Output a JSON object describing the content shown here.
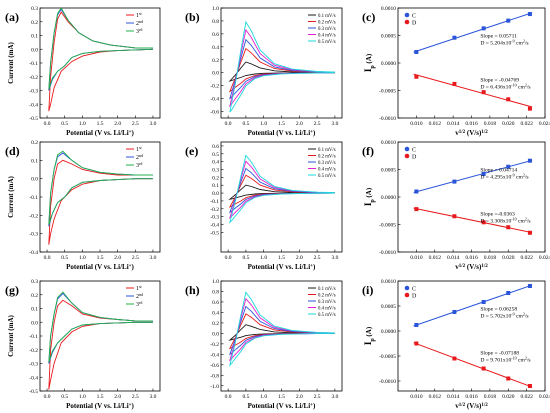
{
  "figure": {
    "panel_count": 9
  },
  "chart_data": [
    {
      "panel": "(a)",
      "type": "line",
      "xlabel": "Potential (V vs. Li/Li",
      "xlabel_sup": "+",
      "xlabel_end": ")",
      "ylabel": "Current (mA)",
      "xlim": [
        -0.2,
        3.2
      ],
      "ylim": [
        -0.5,
        0.3
      ],
      "xticks": [
        "0.0",
        "0.5",
        "1.0",
        "1.5",
        "2.0",
        "2.5",
        "3.0"
      ],
      "yticks": [
        "-0.5",
        "-0.4",
        "-0.3",
        "-0.2",
        "-0.1",
        "0.0",
        "0.1",
        "0.2",
        "0.3"
      ],
      "legend": "top-right",
      "series": [
        {
          "name": "1",
          "sup": "st",
          "color": "#e8191c",
          "x": [
            3.0,
            2.5,
            2.0,
            1.5,
            1.0,
            0.7,
            0.4,
            0.2,
            0.1,
            0.05,
            0.1,
            0.2,
            0.3,
            0.4,
            0.6,
            0.9,
            1.3,
            1.8,
            2.5,
            3.0
          ],
          "y": [
            0.0,
            -0.005,
            -0.01,
            -0.02,
            -0.05,
            -0.09,
            -0.16,
            -0.28,
            -0.4,
            -0.45,
            -0.2,
            0.05,
            0.22,
            0.27,
            0.2,
            0.12,
            0.06,
            0.03,
            0.01,
            0.01
          ]
        },
        {
          "name": "2",
          "sup": "nd",
          "color": "#2b55d8",
          "x": [
            3.0,
            2.5,
            2.0,
            1.5,
            1.0,
            0.7,
            0.5,
            0.3,
            0.15,
            0.05,
            0.1,
            0.2,
            0.3,
            0.4,
            0.6,
            0.9,
            1.3,
            1.8,
            2.5,
            3.0
          ],
          "y": [
            0.0,
            -0.005,
            -0.01,
            -0.015,
            -0.03,
            -0.06,
            -0.12,
            -0.16,
            -0.22,
            -0.3,
            -0.1,
            0.12,
            0.25,
            0.29,
            0.21,
            0.12,
            0.06,
            0.03,
            0.01,
            0.01
          ]
        },
        {
          "name": "3",
          "sup": "rd",
          "color": "#22b04a",
          "x": [
            3.0,
            2.5,
            2.0,
            1.5,
            1.0,
            0.7,
            0.5,
            0.3,
            0.15,
            0.05,
            0.1,
            0.2,
            0.3,
            0.4,
            0.6,
            0.9,
            1.3,
            1.8,
            2.5,
            3.0
          ],
          "y": [
            0.0,
            -0.005,
            -0.01,
            -0.015,
            -0.03,
            -0.06,
            -0.12,
            -0.16,
            -0.21,
            -0.29,
            -0.1,
            0.12,
            0.26,
            0.3,
            0.21,
            0.12,
            0.06,
            0.03,
            0.01,
            0.01
          ]
        }
      ]
    },
    {
      "panel": "(b)",
      "type": "line",
      "xlabel": "Potential (V vs. Li/Li",
      "xlabel_sup": "+",
      "xlabel_end": ")",
      "ylabel": "",
      "xlim": [
        -0.2,
        3.2
      ],
      "ylim": [
        -0.7,
        1.0
      ],
      "xticks": [
        "0.0",
        "0.5",
        "1.0",
        "1.5",
        "2.0",
        "2.5",
        "3.0"
      ],
      "yticks": [
        "-0.6",
        "-0.4",
        "-0.2",
        "0.0",
        "0.2",
        "0.4",
        "0.6",
        "0.8",
        "1.0"
      ],
      "legend": "top-right",
      "series": [
        {
          "name": "0.1 mV/s",
          "color": "#1a1a1a",
          "scale": 0.2
        },
        {
          "name": "0.2 mV/s",
          "color": "#e8191c",
          "scale": 0.45
        },
        {
          "name": "0.3 mV/s",
          "color": "#2b55d8",
          "scale": 0.62
        },
        {
          "name": "0.4 mV/s",
          "color": "#e41fd0",
          "scale": 0.8
        },
        {
          "name": "0.5 mV/s",
          "color": "#1ad8dc",
          "scale": 0.95
        }
      ]
    },
    {
      "panel": "(c)",
      "type": "scatter",
      "xlabel": "v",
      "xlabel_sup": "1/2",
      "xlabel_end": " (V/s)",
      "xlabel_sup2": "1/2",
      "ylabel": "I",
      "ylabel_sub": "p",
      "ylabel_end": " (A)",
      "xlim": [
        0.008,
        0.024
      ],
      "ylim": [
        -0.001,
        0.001
      ],
      "xticks": [
        "0.010",
        "0.012",
        "0.014",
        "0.016",
        "0.018",
        "0.020",
        "0.022",
        "0.024"
      ],
      "yticks": [
        "-0.0010",
        "-0.0005",
        "0.0000",
        "0.0005",
        "0.0010"
      ],
      "legend": "top-left",
      "series": [
        {
          "name": "C",
          "color": "#2b55d8",
          "x": [
            0.01,
            0.01414,
            0.01732,
            0.02,
            0.02236
          ],
          "y": [
            0.0002,
            0.00046,
            0.00063,
            0.00077,
            0.00089
          ]
        },
        {
          "name": "D",
          "color": "#e8191c",
          "x": [
            0.01,
            0.01414,
            0.01732,
            0.02,
            0.02236
          ],
          "y": [
            -0.00025,
            -0.00038,
            -0.00053,
            -0.00066,
            -0.00083
          ]
        }
      ],
      "annotations": [
        {
          "line1": "Slope = 0.05711",
          "line2a": "D = 5.204x10",
          "line2sup": "-9",
          "line2b": " cm",
          "line2sup2": "2",
          "line2c": "/s",
          "pos": "upper"
        },
        {
          "line1": "Slope = -0.04769",
          "line2a": "D = 6.436x10",
          "line2sup": "-10",
          "line2b": " cm",
          "line2sup2": "2",
          "line2c": "/s",
          "pos": "lower"
        }
      ]
    },
    {
      "panel": "(d)",
      "type": "line",
      "xlabel": "Potential (V vs. Li/Li",
      "xlabel_sup": "+",
      "xlabel_end": ")",
      "ylabel": "Current (mA)",
      "xlim": [
        -0.2,
        3.2
      ],
      "ylim": [
        -0.4,
        0.2
      ],
      "xticks": [
        "0.0",
        "0.5",
        "1.0",
        "1.5",
        "2.0",
        "2.5",
        "3.0"
      ],
      "yticks": [
        "-0.4",
        "-0.3",
        "-0.2",
        "-0.1",
        "0.0",
        "0.1",
        "0.2"
      ],
      "legend": "top-right",
      "series": [
        {
          "name": "1",
          "sup": "st",
          "color": "#e8191c",
          "x": [
            3.0,
            2.5,
            2.0,
            1.5,
            1.0,
            0.7,
            0.4,
            0.2,
            0.1,
            0.05,
            0.1,
            0.2,
            0.3,
            0.45,
            0.7,
            1.0,
            1.5,
            2.0,
            2.5,
            3.0
          ],
          "y": [
            0.0,
            0.0,
            -0.005,
            -0.01,
            -0.03,
            -0.06,
            -0.12,
            -0.22,
            -0.3,
            -0.36,
            -0.15,
            0.0,
            0.08,
            0.1,
            0.08,
            0.05,
            0.03,
            0.02,
            0.02,
            0.02
          ]
        },
        {
          "name": "2",
          "sup": "nd",
          "color": "#2b55d8",
          "x": [
            3.0,
            2.5,
            2.0,
            1.5,
            1.0,
            0.7,
            0.5,
            0.3,
            0.15,
            0.05,
            0.1,
            0.2,
            0.3,
            0.45,
            0.7,
            1.0,
            1.5,
            2.0,
            2.5,
            3.0
          ],
          "y": [
            0.0,
            0.0,
            -0.005,
            -0.01,
            -0.02,
            -0.05,
            -0.1,
            -0.13,
            -0.19,
            -0.26,
            -0.08,
            0.05,
            0.12,
            0.14,
            0.1,
            0.06,
            0.035,
            0.025,
            0.02,
            0.02
          ]
        },
        {
          "name": "3",
          "sup": "rd",
          "color": "#22b04a",
          "x": [
            3.0,
            2.5,
            2.0,
            1.5,
            1.0,
            0.7,
            0.5,
            0.3,
            0.15,
            0.05,
            0.1,
            0.2,
            0.3,
            0.45,
            0.7,
            1.0,
            1.5,
            2.0,
            2.5,
            3.0
          ],
          "y": [
            0.0,
            0.0,
            -0.005,
            -0.01,
            -0.02,
            -0.05,
            -0.1,
            -0.13,
            -0.19,
            -0.25,
            -0.08,
            0.05,
            0.13,
            0.15,
            0.1,
            0.06,
            0.035,
            0.025,
            0.02,
            0.02
          ]
        }
      ]
    },
    {
      "panel": "(e)",
      "type": "line",
      "xlabel": "Potential (V vs. Li/Li",
      "xlabel_sup": "+",
      "xlabel_end": ")",
      "ylabel": "",
      "xlim": [
        -0.2,
        3.2
      ],
      "ylim": [
        -0.75,
        0.65
      ],
      "xticks": [
        "0.0",
        "0.5",
        "1.0",
        "1.5",
        "2.0",
        "2.5",
        "3.0"
      ],
      "yticks": [
        "-0.5",
        "-0.4",
        "-0.3",
        "-0.2",
        "-0.1",
        "0.0",
        "0.1",
        "0.2",
        "0.3",
        "0.4",
        "0.5",
        "0.6"
      ],
      "legend": "top-right",
      "series": [
        {
          "name": "0.1 mV/s",
          "color": "#1a1a1a",
          "scale": 0.2
        },
        {
          "name": "0.2 mV/s",
          "color": "#e8191c",
          "scale": 0.45
        },
        {
          "name": "0.3 mV/s",
          "color": "#2b55d8",
          "scale": 0.62
        },
        {
          "name": "0.4 mV/s",
          "color": "#e41fd0",
          "scale": 0.8
        },
        {
          "name": "0.5 mV/s",
          "color": "#1ad8dc",
          "scale": 0.95
        }
      ]
    },
    {
      "panel": "(f)",
      "type": "scatter",
      "xlabel": "v",
      "xlabel_sup": "1/2",
      "xlabel_end": " (V/s)",
      "xlabel_sup2": "1/2",
      "ylabel": "I",
      "ylabel_sub": "p",
      "ylabel_end": " (A)",
      "xlim": [
        0.008,
        0.024
      ],
      "ylim": [
        -0.001,
        0.001
      ],
      "xticks": [
        "0.010",
        "0.012",
        "0.014",
        "0.016",
        "0.018",
        "0.020",
        "0.022",
        "0.024"
      ],
      "yticks": [
        "-0.0010",
        "-0.0005",
        "0.0000",
        "0.0005",
        "0.0010"
      ],
      "legend": "top-left",
      "series": [
        {
          "name": "C",
          "color": "#2b55d8",
          "x": [
            0.01,
            0.01414,
            0.01732,
            0.02,
            0.02236
          ],
          "y": [
            0.0001,
            0.00028,
            0.00042,
            0.00055,
            0.00066
          ]
        },
        {
          "name": "D",
          "color": "#e8191c",
          "x": [
            0.01,
            0.01414,
            0.01732,
            0.02,
            0.02236
          ],
          "y": [
            -0.00022,
            -0.00035,
            -0.00046,
            -0.00055,
            -0.00065
          ]
        }
      ],
      "annotations": [
        {
          "line1": "Slope = 0.04714",
          "line2a": "D = 4.295x10",
          "line2sup": "-9",
          "line2b": " cm",
          "line2sup2": "2",
          "line2c": "/s",
          "pos": "upper"
        },
        {
          "line1": "Slope =-0.0363",
          "line2a": "D = 3.308x10",
          "line2sup": "-10",
          "line2b": " cm",
          "line2sup2": "2",
          "line2c": "/s",
          "pos": "lower"
        }
      ]
    },
    {
      "panel": "(g)",
      "type": "line",
      "xlabel": "Potential (V vs. Li/Li",
      "xlabel_sup": "+",
      "xlabel_end": ")",
      "ylabel": "Current (mA)",
      "xlim": [
        -0.2,
        3.2
      ],
      "ylim": [
        -0.5,
        0.3
      ],
      "xticks": [
        "0.0",
        "0.5",
        "1.0",
        "1.5",
        "2.0",
        "2.5",
        "3.0"
      ],
      "yticks": [
        "-0.5",
        "-0.4",
        "-0.3",
        "-0.2",
        "-0.1",
        "0.0",
        "0.1",
        "0.2",
        "0.3"
      ],
      "legend": "top-right",
      "series": [
        {
          "name": "1",
          "sup": "st",
          "color": "#e8191c",
          "x": [
            3.0,
            2.5,
            2.0,
            1.5,
            1.0,
            0.7,
            0.4,
            0.2,
            0.1,
            0.05,
            0.1,
            0.2,
            0.3,
            0.45,
            0.7,
            1.0,
            1.5,
            2.0,
            2.5,
            3.0
          ],
          "y": [
            0.0,
            0.0,
            -0.005,
            -0.01,
            -0.03,
            -0.07,
            -0.15,
            -0.3,
            -0.42,
            -0.49,
            -0.2,
            0.0,
            0.12,
            0.16,
            0.12,
            0.06,
            0.03,
            0.02,
            0.01,
            0.01
          ]
        },
        {
          "name": "2",
          "sup": "nd",
          "color": "#2b55d8",
          "x": [
            3.0,
            2.5,
            2.0,
            1.5,
            1.0,
            0.7,
            0.5,
            0.3,
            0.15,
            0.05,
            0.1,
            0.2,
            0.3,
            0.45,
            0.7,
            1.0,
            1.5,
            2.0,
            2.5,
            3.0
          ],
          "y": [
            0.0,
            0.0,
            -0.005,
            -0.01,
            -0.02,
            -0.05,
            -0.1,
            -0.15,
            -0.22,
            -0.3,
            -0.1,
            0.06,
            0.17,
            0.21,
            0.14,
            0.07,
            0.035,
            0.02,
            0.01,
            0.01
          ]
        },
        {
          "name": "3",
          "sup": "rd",
          "color": "#22b04a",
          "x": [
            3.0,
            2.5,
            2.0,
            1.5,
            1.0,
            0.7,
            0.5,
            0.3,
            0.15,
            0.05,
            0.1,
            0.2,
            0.3,
            0.45,
            0.7,
            1.0,
            1.5,
            2.0,
            2.5,
            3.0
          ],
          "y": [
            0.0,
            0.0,
            -0.005,
            -0.01,
            -0.02,
            -0.05,
            -0.1,
            -0.15,
            -0.21,
            -0.29,
            -0.1,
            0.06,
            0.18,
            0.22,
            0.14,
            0.07,
            0.035,
            0.02,
            0.01,
            0.01
          ]
        }
      ]
    },
    {
      "panel": "(h)",
      "type": "line",
      "xlabel": "Potential (V vs. Li/Li",
      "xlabel_sup": "+",
      "xlabel_end": ")",
      "ylabel": "",
      "xlim": [
        -0.2,
        3.2
      ],
      "ylim": [
        -1.1,
        1.0
      ],
      "xticks": [
        "0.0",
        "0.5",
        "1.0",
        "1.5",
        "2.0",
        "2.5",
        "3.0"
      ],
      "yticks": [
        "-1.0",
        "-0.8",
        "-0.6",
        "-0.4",
        "-0.2",
        "0.0",
        "0.2",
        "0.4",
        "0.6",
        "0.8",
        "1.0"
      ],
      "legend": "top-right",
      "series": [
        {
          "name": "0.1 mV/s",
          "color": "#1a1a1a",
          "scale": 0.2
        },
        {
          "name": "0.2 mV/s",
          "color": "#e8191c",
          "scale": 0.45
        },
        {
          "name": "0.3 mV/s",
          "color": "#2b55d8",
          "scale": 0.62
        },
        {
          "name": "0.4 mV/s",
          "color": "#e41fd0",
          "scale": 0.8
        },
        {
          "name": "0.5 mV/s",
          "color": "#1ad8dc",
          "scale": 0.95
        }
      ]
    },
    {
      "panel": "(i)",
      "type": "scatter",
      "xlabel": "v",
      "xlabel_sup": "1/2",
      "xlabel_end": " (V/s)",
      "xlabel_sup2": "1/2",
      "ylabel": "I",
      "ylabel_sub": "p",
      "ylabel_end": " (A)",
      "xlim": [
        0.008,
        0.024
      ],
      "ylim": [
        -0.0012,
        0.001
      ],
      "xticks": [
        "0.010",
        "0.012",
        "0.014",
        "0.016",
        "0.018",
        "0.020",
        "0.022",
        "0.024"
      ],
      "yticks": [
        "-0.0010",
        "-0.0005",
        "0.0000",
        "0.0005",
        "0.0010"
      ],
      "legend": "top-left",
      "series": [
        {
          "name": "C",
          "color": "#2b55d8",
          "x": [
            0.01,
            0.01414,
            0.01732,
            0.02,
            0.02236
          ],
          "y": [
            0.00012,
            0.00038,
            0.00058,
            0.00076,
            0.0009
          ]
        },
        {
          "name": "D",
          "color": "#e8191c",
          "x": [
            0.01,
            0.01414,
            0.01732,
            0.02,
            0.02236
          ],
          "y": [
            -0.00025,
            -0.00055,
            -0.00075,
            -0.00095,
            -0.0011
          ]
        }
      ],
      "annotations": [
        {
          "line1": "Slope = 0.06258",
          "line2a": "D = 5.702x10",
          "line2sup": "-9",
          "line2b": " cm",
          "line2sup2": "2",
          "line2c": "/s",
          "pos": "upper"
        },
        {
          "line1": "Slope = -0.07188",
          "line2a": "D = 9.701x10",
          "line2sup": "-10",
          "line2b": " cm",
          "line2sup2": "2",
          "line2c": "/s",
          "pos": "lower"
        }
      ]
    }
  ]
}
